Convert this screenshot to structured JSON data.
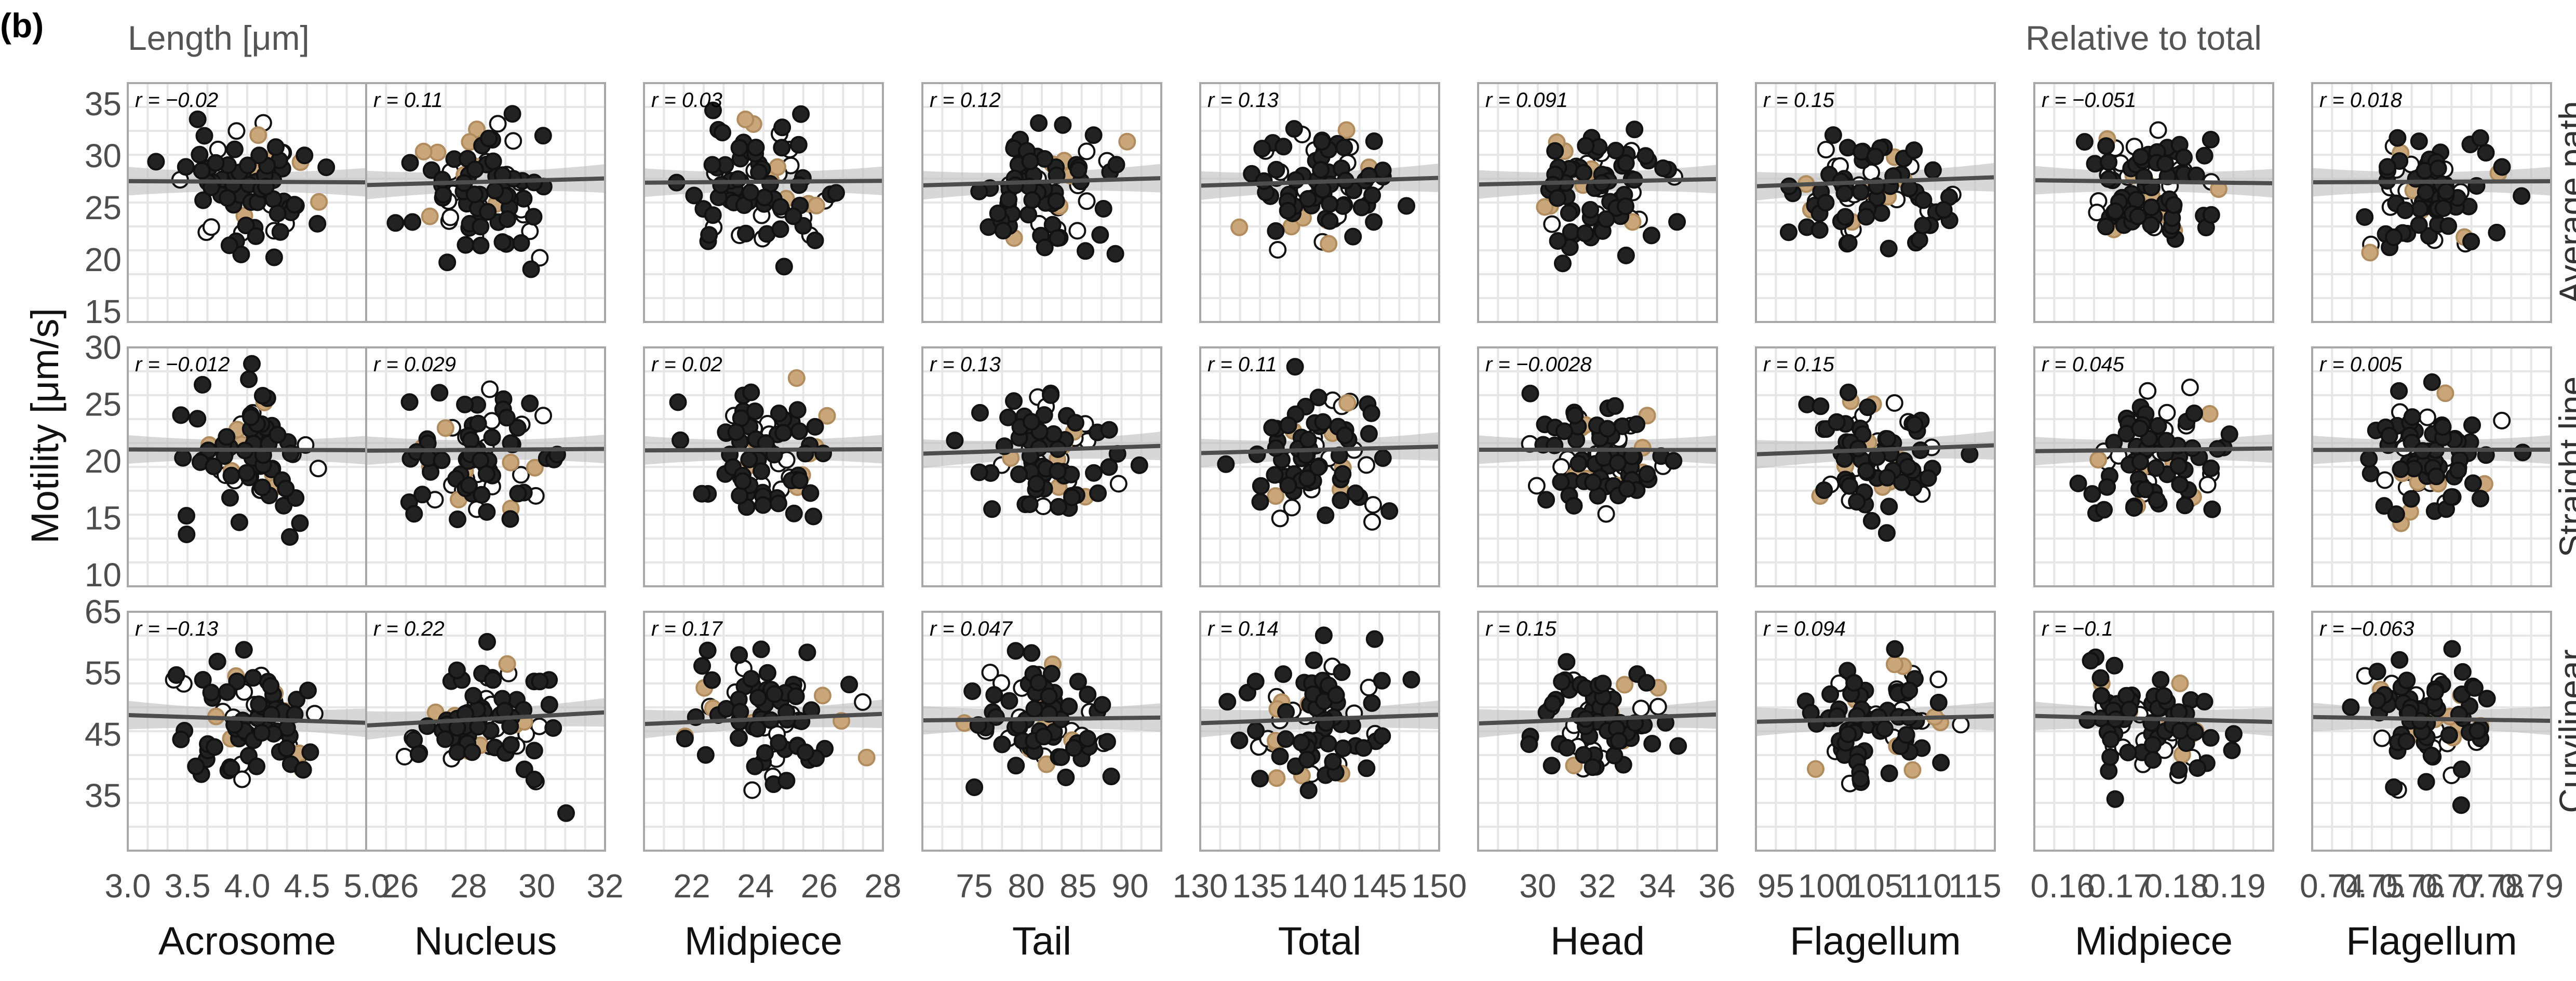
{
  "figure": {
    "panel_label": "(b)",
    "group_labels": [
      "Length [μm]",
      "Relative to total"
    ],
    "y_title": "Motility [μm/s]",
    "colors": {
      "open_fill": "#ffffff",
      "black_fill": "#222222",
      "tan_fill": "#c9a77a",
      "trend": "#4d4d4d",
      "ribbon": "#bdbdbd"
    }
  },
  "chart_data": {
    "type": "scatter",
    "rows": [
      {
        "label": "Average path",
        "ylim": [
          14,
          37
        ],
        "yticks": [
          15,
          20,
          25,
          30,
          35
        ]
      },
      {
        "label": "Straight line",
        "ylim": [
          9,
          30
        ],
        "yticks": [
          10,
          15,
          20,
          25,
          30
        ]
      },
      {
        "label": "Curvilinear",
        "ylim": [
          26,
          65
        ],
        "yticks": [
          35,
          45,
          55,
          65
        ]
      }
    ],
    "columns": [
      {
        "label": "Acrosome",
        "xlim": [
          3.0,
          5.0
        ],
        "xticks": [
          "3.0",
          "3.5",
          "4.0",
          "4.5",
          "5.0"
        ]
      },
      {
        "label": "Nucleus",
        "xlim": [
          25,
          32
        ],
        "xticks": [
          "26",
          "28",
          "30",
          "32"
        ]
      },
      {
        "label": "Midpiece",
        "xlim": [
          20.5,
          28
        ],
        "xticks": [
          "22",
          "24",
          "26",
          "28"
        ]
      },
      {
        "label": "Tail",
        "xlim": [
          70,
          93
        ],
        "xticks": [
          "75",
          "80",
          "85",
          "90"
        ]
      },
      {
        "label": "Total",
        "xlim": [
          130,
          150
        ],
        "xticks": [
          "130",
          "135",
          "140",
          "145",
          "150"
        ]
      },
      {
        "label": "Head",
        "xlim": [
          28,
          36
        ],
        "xticks": [
          "30",
          "32",
          "34",
          "36"
        ]
      },
      {
        "label": "Flagellum",
        "xlim": [
          93,
          117
        ],
        "xticks": [
          "95",
          "100",
          "105",
          "110",
          "115"
        ]
      },
      {
        "label": "Midpiece",
        "xlim": [
          0.155,
          0.197
        ],
        "xticks": [
          "0.16",
          "0.17",
          "0.18",
          "0.19"
        ]
      },
      {
        "label": "Flagellum",
        "xlim": [
          0.735,
          0.795
        ],
        "xticks": [
          "0.74",
          "0.75",
          "0.76",
          "0.77",
          "0.78",
          "0.79"
        ]
      }
    ],
    "r_values": [
      [
        "r = −0.02",
        "r = 0.11",
        "r = 0.03",
        "r = 0.12",
        "r = 0.13",
        "r = 0.091",
        "r = 0.15",
        "r = −0.051",
        "r = 0.018"
      ],
      [
        "r = −0.012",
        "r = 0.029",
        "r = 0.02",
        "r = 0.13",
        "r = 0.11",
        "r = −0.0028",
        "r = 0.15",
        "r = 0.045",
        "r = 0.005"
      ],
      [
        "r = −0.13",
        "r = 0.22",
        "r = 0.17",
        "r = 0.047",
        "r = 0.14",
        "r = 0.15",
        "r = 0.094",
        "r = −0.1",
        "r = −0.063"
      ]
    ]
  }
}
